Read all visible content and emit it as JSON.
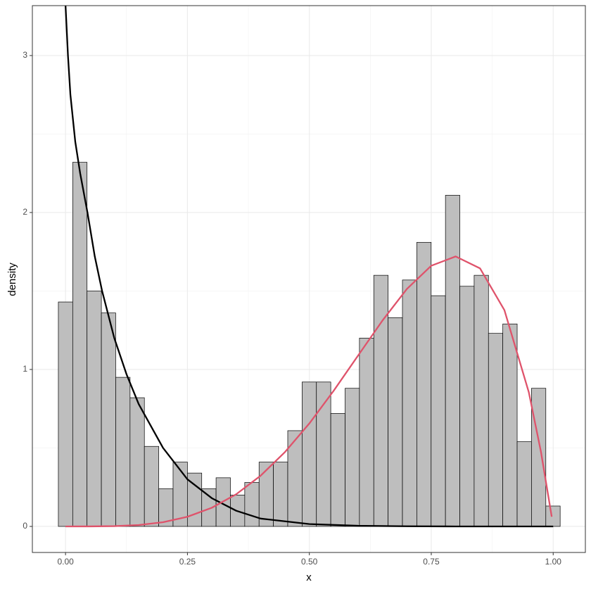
{
  "chart_data": {
    "type": "histogram",
    "x_label": "x",
    "y_label": "density",
    "bins": [
      -0.0147,
      0.0147,
      0.0441,
      0.0735,
      0.1029,
      0.1323,
      0.1617,
      0.1911,
      0.2205,
      0.2499,
      0.2793,
      0.3087,
      0.3381,
      0.3675,
      0.3969,
      0.4263,
      0.4557,
      0.4851,
      0.5145,
      0.5439,
      0.5733,
      0.6027,
      0.6321,
      0.6615,
      0.6909,
      0.7203,
      0.7497,
      0.7791,
      0.8085,
      0.8379,
      0.8673,
      0.8967,
      0.9261,
      0.9555,
      0.9849,
      1.0143
    ],
    "values": [
      1.43,
      2.32,
      1.5,
      1.36,
      0.95,
      0.82,
      0.51,
      0.24,
      0.41,
      0.34,
      0.24,
      0.31,
      0.2,
      0.28,
      0.41,
      0.41,
      0.61,
      0.92,
      0.92,
      0.72,
      0.88,
      1.2,
      1.6,
      1.33,
      1.57,
      1.81,
      1.47,
      2.11,
      1.53,
      1.6,
      1.23,
      1.29,
      0.54,
      0.88,
      0.13
    ],
    "color": "#bebebe",
    "series": [
      {
        "color": "#000000",
        "x": [
          0.0,
          0.005,
          0.01,
          0.02,
          0.03,
          0.045,
          0.06,
          0.075,
          0.1,
          0.125,
          0.15,
          0.2,
          0.25,
          0.3,
          0.35,
          0.4,
          0.5,
          0.6,
          0.7,
          0.8,
          0.9,
          1.0
        ],
        "values": [
          3.32,
          3.0,
          2.75,
          2.45,
          2.25,
          2.0,
          1.72,
          1.5,
          1.2,
          0.97,
          0.78,
          0.5,
          0.3,
          0.18,
          0.1,
          0.05,
          0.015,
          0.004,
          0.001,
          0,
          0,
          0
        ]
      },
      {
        "color": "#df536b",
        "x": [
          0.0,
          0.05,
          0.1,
          0.15,
          0.2,
          0.25,
          0.3,
          0.35,
          0.4,
          0.45,
          0.5,
          0.55,
          0.6,
          0.65,
          0.7,
          0.75,
          0.8,
          0.85,
          0.9,
          0.95,
          0.975,
          0.997
        ],
        "values": [
          0,
          0.0001,
          0.0019,
          0.009,
          0.027,
          0.0615,
          0.119,
          0.205,
          0.323,
          0.474,
          0.656,
          0.865,
          1.089,
          1.312,
          1.513,
          1.661,
          1.72,
          1.644,
          1.378,
          0.855,
          0.474,
          0.062
        ]
      }
    ],
    "xlim": [
      -0.068,
      1.066
    ],
    "ylim": [
      -0.166,
      3.318
    ],
    "xticks": [
      {
        "value": 0,
        "label": "0.00"
      },
      {
        "value": 0.25,
        "label": "0.25"
      },
      {
        "value": 0.5,
        "label": "0.50"
      },
      {
        "value": 0.75,
        "label": "0.75"
      },
      {
        "value": 1,
        "label": "1.00"
      }
    ],
    "yticks": [
      0,
      1,
      2,
      3
    ],
    "grid": true
  }
}
